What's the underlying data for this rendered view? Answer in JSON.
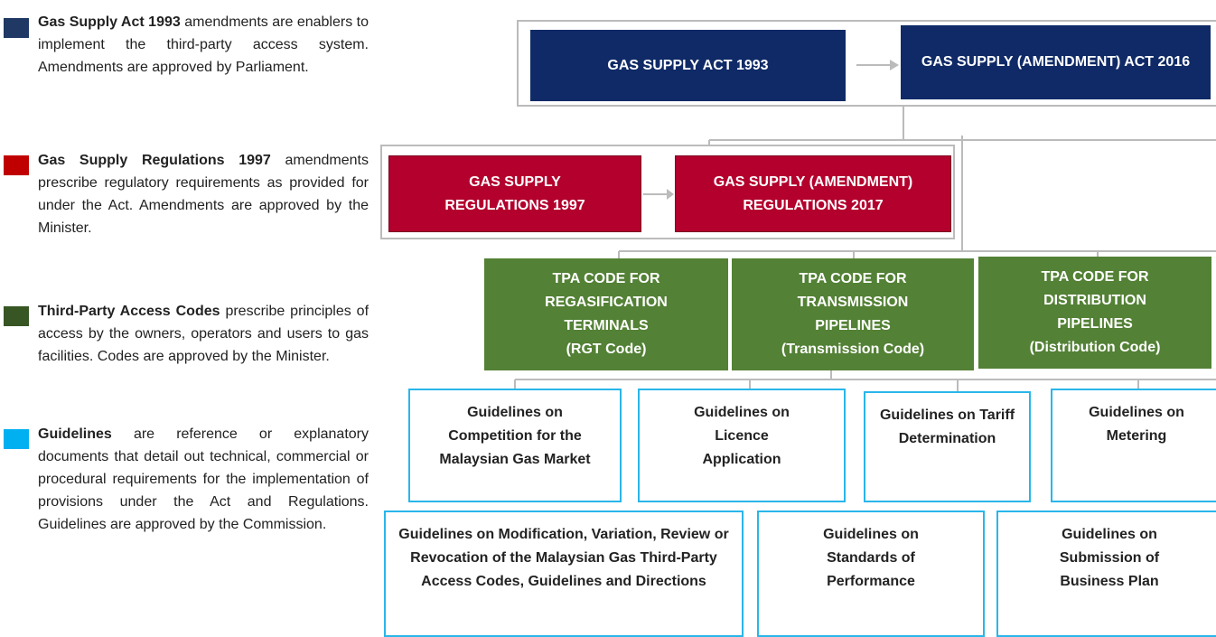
{
  "legend": [
    {
      "term": "Gas Supply Act 1993",
      "description": "amendments are enablers to implement the third-party access system. Amendments are approved by Parliament."
    },
    {
      "term": "Gas Supply Regulations 1997",
      "description": "amendments prescribe regulatory requirements as provided for under the Act. Amendments are approved by the Minister."
    },
    {
      "term": "Third-Party Access Codes",
      "description": "prescribe principles of access by the owners, operators and users to gas facilities. Codes are approved by the Minister."
    },
    {
      "term": "Guidelines",
      "description": "are reference or explanatory documents that detail out technical, commercial or procedural requirements for the implementation of provisions under the Act and Regulations. Guidelines are approved by the Commission."
    }
  ],
  "acts": [
    "GAS SUPPLY ACT 1993",
    "GAS SUPPLY (AMENDMENT) ACT 2016"
  ],
  "regulations": [
    "GAS SUPPLY REGULATIONS 1997",
    "GAS SUPPLY (AMENDMENT) REGULATIONS 2017"
  ],
  "codes": [
    {
      "title": "TPA CODE FOR REGASIFICATION TERMINALS",
      "short": "(RGT Code)"
    },
    {
      "title": "TPA CODE FOR TRANSMISSION PIPELINES",
      "short": "(Transmission Code)"
    },
    {
      "title": "TPA CODE FOR DISTRIBUTION PIPELINES",
      "short": "(Distribution Code)"
    }
  ],
  "guidelines": [
    "Guidelines on Competition for the Malaysian Gas Market",
    "Guidelines on Licence Application",
    "Guidelines on Tariff Determination",
    "Guidelines on Metering",
    "Guidelines on Modification, Variation, Review or Revocation of the Malaysian Gas Third-Party Access Codes, Guidelines and Directions",
    "Guidelines on Standards of Performance",
    "Guidelines on Submission of Business Plan"
  ]
}
